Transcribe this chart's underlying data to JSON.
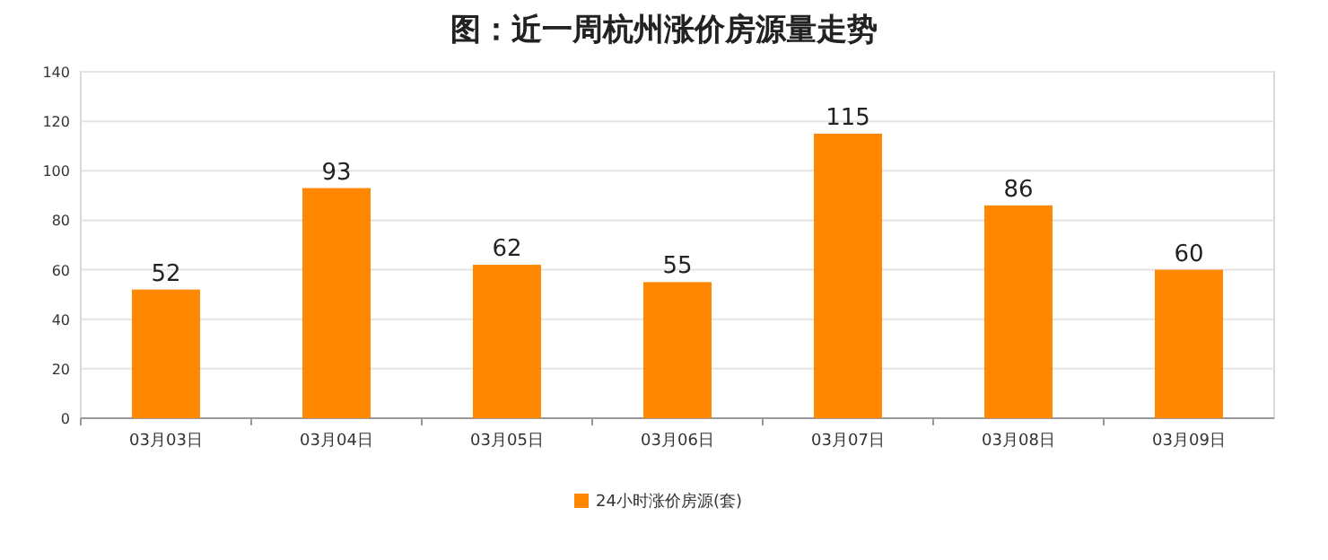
{
  "chart_data": {
    "type": "bar",
    "title": "图：近一周杭州涨价房源量走势",
    "categories": [
      "03月03日",
      "03月04日",
      "03月05日",
      "03月06日",
      "03月07日",
      "03月08日",
      "03月09日"
    ],
    "series": [
      {
        "name": "24小时涨价房源(套)",
        "color": "#ff8800",
        "values": [
          52,
          93,
          62,
          55,
          115,
          86,
          60
        ]
      }
    ],
    "ylim": [
      0,
      140
    ],
    "yticks": [
      0,
      20,
      40,
      60,
      80,
      100,
      120,
      140
    ],
    "grid": "y",
    "legend": "bottom",
    "data_labels": true
  }
}
